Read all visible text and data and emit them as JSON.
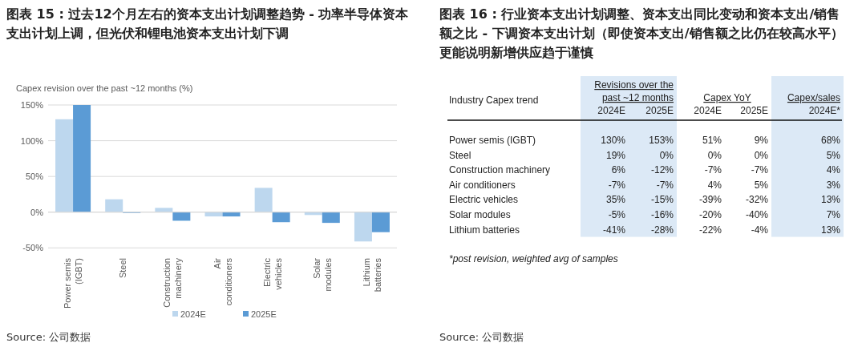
{
  "chart_data": [
    {
      "type": "bar",
      "title": "图表 15 : 过去12个月左右的资本支出计划调整趋势 - 功率半导体资本支出计划上调，但光伏和锂电池资本支出计划下调",
      "ylabel": "Capex revision over the past ~12 months (%)",
      "categories": [
        "Power semis (IGBT)",
        "Steel",
        "Construction machinery",
        "Air conditioners",
        "Electric vehicles",
        "Solar modules",
        "Lithium batteries"
      ],
      "series": [
        {
          "name": "2024E",
          "color": "#bdd7ee",
          "values": [
            130,
            18,
            6,
            -6,
            34,
            -4,
            -41
          ]
        },
        {
          "name": "2025E",
          "color": "#5b9bd5",
          "values": [
            150,
            -1,
            -12,
            -6,
            -14,
            -15,
            -28
          ]
        }
      ],
      "ylim": [
        -53,
        150
      ],
      "yticks": [
        {
          "value": -50,
          "label": "-50%"
        },
        {
          "value": 0,
          "label": "0%"
        },
        {
          "value": 50,
          "label": "50%"
        },
        {
          "value": 100,
          "label": "100%"
        },
        {
          "value": 150,
          "label": "150%"
        }
      ],
      "grid": "y",
      "legend": "bottom",
      "annotations": [
        "Source: 公司数据"
      ]
    },
    {
      "type": "other",
      "title": "图表 16 : 行业资本支出计划调整、资本支出同比变动和资本支出/销售额之比 - 下调资本支出计划（即使资本支出/销售额之比仍在较高水平）更能说明新增供应趋于谨慎",
      "categories": [
        "2024E",
        "2025E",
        "2024E",
        "2025E",
        "2024E*"
      ],
      "y_categories": [
        "Power semis (IGBT)",
        "Steel",
        "Construction machinery",
        "Air conditioners",
        "Electric vehicles",
        "Solar modules",
        "Lithium batteries"
      ],
      "cell_labels": [
        [
          "130%",
          "153%",
          "51%",
          "9%",
          "68%"
        ],
        [
          "19%",
          "0%",
          "0%",
          "0%",
          "5%"
        ],
        [
          "6%",
          "-12%",
          "-7%",
          "-7%",
          "4%"
        ],
        [
          "-7%",
          "-7%",
          "4%",
          "5%",
          "3%"
        ],
        [
          "35%",
          "-15%",
          "-39%",
          "-32%",
          "13%"
        ],
        [
          "-5%",
          "-16%",
          "-20%",
          "-40%",
          "7%"
        ],
        [
          "-41%",
          "-28%",
          "-22%",
          "-4%",
          "13%"
        ]
      ],
      "colors": [
        "#dce9f6",
        "#dce9f6",
        "#ffffff",
        "#ffffff",
        "#dce9f6"
      ],
      "annotations": [
        "Industry Capex trend",
        "Revisions over the past ~12 months",
        "Capex YoY",
        "Capex/sales",
        "*post revision, weighted avg of samples",
        "Source: 公司数据"
      ]
    }
  ]
}
